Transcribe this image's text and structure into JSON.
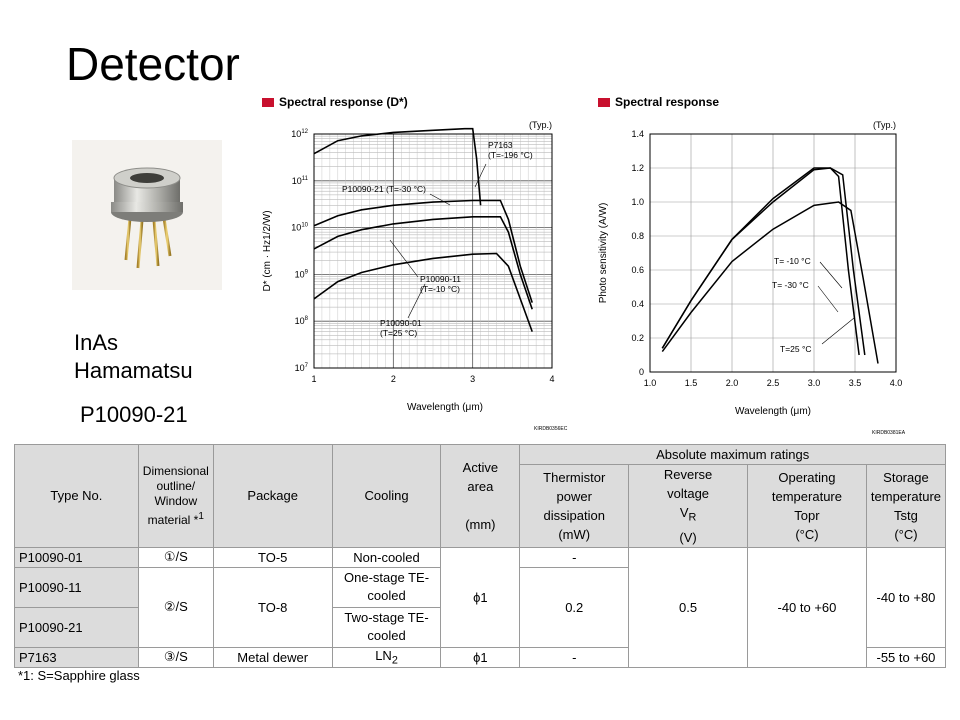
{
  "title": "Detector",
  "caption": {
    "line1": "InAs",
    "line2": "Hamamatsu",
    "model": "P10090-21"
  },
  "colors": {
    "accent": "#c8102e",
    "curve": "#000000",
    "table_header": "#dcdcdc"
  },
  "chart_data": [
    {
      "type": "line",
      "title": "Spectral response (D*)",
      "note": "(Typ.)",
      "xlabel": "Wavelength (μm)",
      "ylabel": "D* (cm · Hz1/2/W)",
      "xlim": [
        1,
        4
      ],
      "ylim": [
        10000000,
        1000000000000
      ],
      "yscale": "log",
      "xticks": [
        "1",
        "2",
        "3",
        "4"
      ],
      "yticks": [
        "10^7",
        "10^8",
        "10^9",
        "10^10",
        "10^11",
        "10^12"
      ],
      "code": "KIRDB0356EC",
      "series": [
        {
          "name": "P7163 (T=-196 °C)",
          "label_lines": [
            "P7163",
            "(T=-196 °C)"
          ],
          "x": [
            1.0,
            1.3,
            1.6,
            2.0,
            2.5,
            2.9,
            3.0,
            3.05,
            3.1
          ],
          "y": [
            380000000000,
            720000000000,
            910000000000,
            1080000000000,
            1200000000000,
            1300000000000,
            1300000000000,
            300000000000,
            30000000000
          ]
        },
        {
          "name": "P10090-21 (T=-30 °C)",
          "label_lines": [
            "P10090-21 (T=-30 °C)"
          ],
          "x": [
            1.0,
            1.3,
            1.6,
            2.0,
            2.5,
            3.0,
            3.35,
            3.45,
            3.6,
            3.75
          ],
          "y": [
            11000000000,
            18000000000,
            24000000000,
            30000000000,
            35000000000,
            38000000000,
            38000000000,
            15000000000,
            1500000000,
            250000000
          ]
        },
        {
          "name": "P10090-11 (T=-10 °C)",
          "label_lines": [
            "P10090-11",
            "(T=-10 °C)"
          ],
          "x": [
            1.0,
            1.3,
            1.6,
            2.0,
            2.5,
            3.0,
            3.35,
            3.45,
            3.6,
            3.75
          ],
          "y": [
            3500000000,
            6500000000,
            9000000000,
            12000000000,
            15000000000,
            17000000000,
            17000000000,
            8000000000,
            1000000000,
            180000000
          ]
        },
        {
          "name": "P10090-01 (T=25 °C)",
          "label_lines": [
            "P10090-01",
            "(T=25 °C)"
          ],
          "x": [
            1.0,
            1.3,
            1.6,
            2.0,
            2.5,
            3.0,
            3.3,
            3.45,
            3.6,
            3.75
          ],
          "y": [
            300000000,
            700000000,
            1100000000,
            1600000000,
            2200000000,
            2700000000,
            2800000000,
            1500000000,
            300000000,
            60000000
          ]
        }
      ]
    },
    {
      "type": "line",
      "title": "Spectral response",
      "note": "(Typ.)",
      "xlabel": "Wavelength (μm)",
      "ylabel": "Photo sensitivity (A/W)",
      "xlim": [
        1.0,
        4.0
      ],
      "ylim": [
        0,
        1.4
      ],
      "xticks": [
        "1.0",
        "1.5",
        "2.0",
        "2.5",
        "3.0",
        "3.5",
        "4.0"
      ],
      "yticks": [
        "0",
        "0.2",
        "0.4",
        "0.6",
        "0.8",
        "1.0",
        "1.2",
        "1.4"
      ],
      "code": "KIRDB0381EA",
      "series": [
        {
          "name": "T= -10 °C",
          "x": [
            1.15,
            1.5,
            2.0,
            2.5,
            3.0,
            3.2,
            3.3,
            3.42,
            3.55
          ],
          "y": [
            0.14,
            0.42,
            0.78,
            1.02,
            1.2,
            1.2,
            1.15,
            0.6,
            0.1
          ]
        },
        {
          "name": "T= -30 °C",
          "x": [
            1.15,
            1.5,
            2.0,
            2.5,
            3.0,
            3.2,
            3.35,
            3.48,
            3.62
          ],
          "y": [
            0.14,
            0.42,
            0.78,
            1.0,
            1.19,
            1.2,
            1.16,
            0.6,
            0.1
          ]
        },
        {
          "name": "T=25 °C",
          "x": [
            1.15,
            1.5,
            2.0,
            2.5,
            3.0,
            3.3,
            3.45,
            3.6,
            3.78
          ],
          "y": [
            0.12,
            0.35,
            0.65,
            0.84,
            0.98,
            1.0,
            0.95,
            0.55,
            0.05
          ]
        }
      ]
    }
  ],
  "table": {
    "headers": {
      "type_no": "Type No.",
      "dimensional_lines": [
        "Dimensional",
        "outline/",
        "Window"
      ],
      "dimensional_last": "material *",
      "dimensional_sup": "1",
      "package": "Package",
      "cooling": "Cooling",
      "active_area_lines": [
        "Active",
        "area"
      ],
      "active_area_unit": "(mm)",
      "abs_max": "Absolute maximum ratings",
      "thermistor_lines": [
        "Thermistor",
        "power",
        "dissipation",
        "(mW)"
      ],
      "reverse_lines": [
        "Reverse",
        "voltage"
      ],
      "reverse_symbol": "V",
      "reverse_sub": "R",
      "reverse_unit": "(V)",
      "operating_lines": [
        "Operating",
        "temperature",
        "Topr",
        "(°C)"
      ],
      "storage_lines": [
        "Storage",
        "temperature",
        "Tstg",
        "(°C)"
      ]
    },
    "rows": [
      {
        "type": "P10090-01",
        "dimensional": "①/S",
        "package": "TO-5",
        "cooling": "Non-cooled",
        "thermistor": "-"
      },
      {
        "type": "P10090-11",
        "cooling": "One-stage TE-cooled"
      },
      {
        "type": "P10090-21",
        "cooling": "Two-stage TE-cooled"
      },
      {
        "type": "P7163",
        "dimensional": "③/S",
        "package": "Metal dewer",
        "cooling": "LN",
        "cooling_sub": "2",
        "active_area": "ϕ1",
        "thermistor": "-",
        "storage": "-55 to +60"
      }
    ],
    "merged": {
      "dimensional_11_21": "②/S",
      "package_11_21": "TO-8",
      "active_area_01_21": "ϕ1",
      "thermistor_11_21": "0.2",
      "reverse_all": "0.5",
      "operating_all": "-40 to +60",
      "storage_01_21": "-40 to +80"
    }
  },
  "footnote": "*1: S=Sapphire glass"
}
